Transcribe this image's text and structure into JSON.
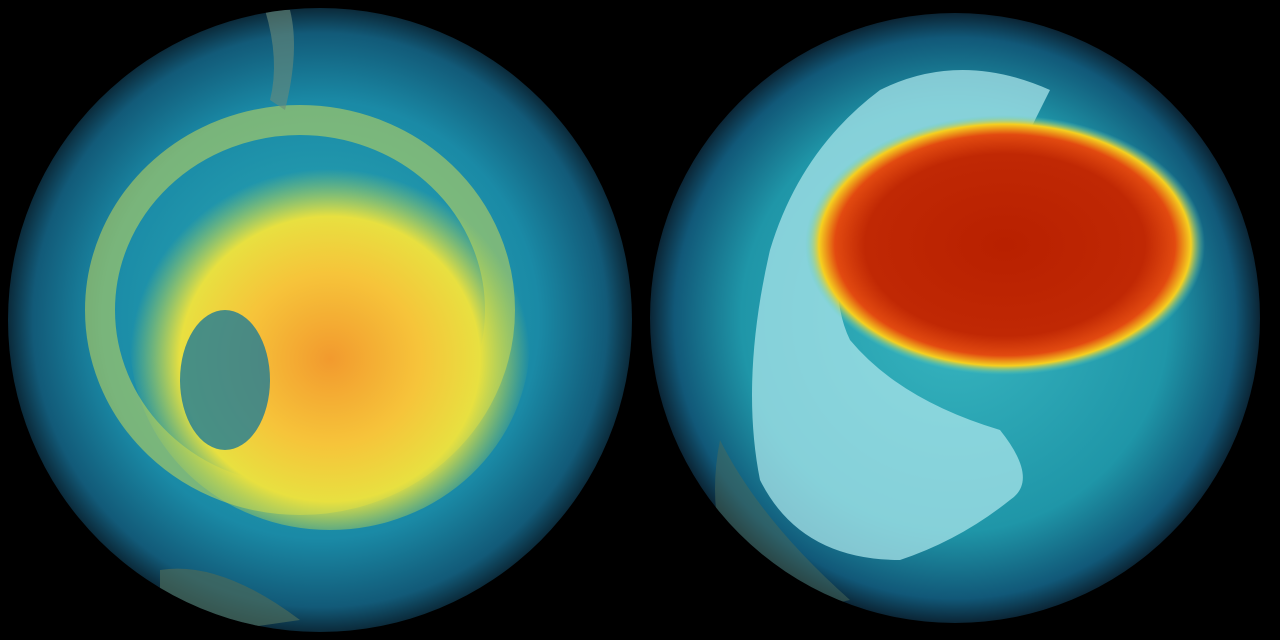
{
  "scene": {
    "background": "#000000",
    "globes": [
      {
        "id": "left",
        "ocean": "#1a8aa6",
        "limb": "#0b2a3a",
        "hotspot_core": "#f29a2e",
        "hotspot_mid": "#f5d93a",
        "hotspot_edge": "#b8d84a"
      },
      {
        "id": "right",
        "ocean": "#1f96a8",
        "limb": "#0b2535",
        "hotspot_core": "#b82000",
        "hotspot_mid": "#e24a10",
        "hotspot_edge": "#f5d020",
        "ice": "#a8e4ea"
      }
    ]
  }
}
